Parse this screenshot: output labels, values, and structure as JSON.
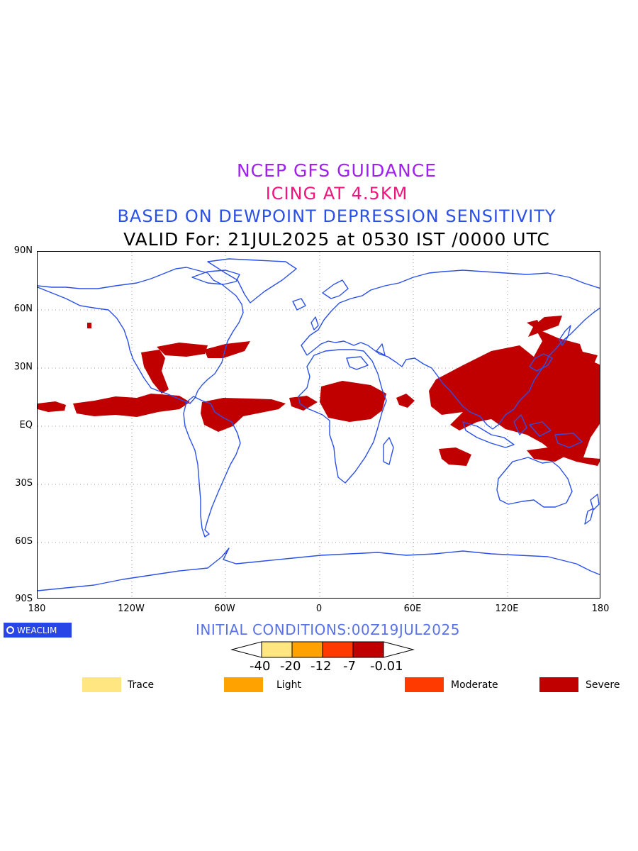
{
  "titles": {
    "line1": "NCEP GFS GUIDANCE",
    "line2": "ICING AT 4.5KM",
    "line3": "BASED ON DEWPOINT DEPRESSION SENSITIVITY",
    "line4": "VALID For: 21JUL2025 at 0530 IST /0000 UTC"
  },
  "axes": {
    "lat_labels": [
      "90N",
      "60N",
      "30N",
      "EQ",
      "30S",
      "60S",
      "90S"
    ],
    "lon_labels": [
      "180",
      "120W",
      "60W",
      "0",
      "60E",
      "120E",
      "180"
    ]
  },
  "logo": {
    "text": "WEACLIM"
  },
  "initial_conditions": "INITIAL CONDITIONS:00Z19JUL2025",
  "colorbar": {
    "tick_labels": [
      "-40",
      "-20",
      "-12",
      "-7",
      "-0.01"
    ],
    "colors": [
      "#ffe680",
      "#ffa200",
      "#ff3a00",
      "#c00000"
    ]
  },
  "legend": [
    {
      "label": "Trace",
      "color": "#ffe680"
    },
    {
      "label": "Light",
      "color": "#ffa200"
    },
    {
      "label": "Moderate",
      "color": "#ff3a00"
    },
    {
      "label": "Severe",
      "color": "#c00000"
    }
  ],
  "map_style": {
    "coast_color": "#2b50e8",
    "grid": "dotted"
  }
}
